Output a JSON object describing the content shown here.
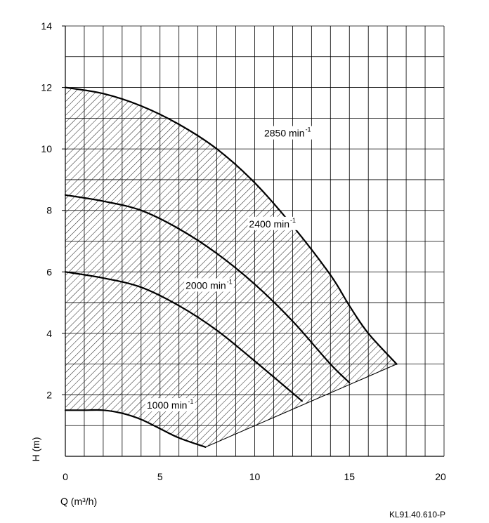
{
  "chart_data": {
    "type": "line",
    "title": "",
    "xlabel": "Q (m³/h)",
    "ylabel": "H (m)",
    "xlim": [
      0,
      20
    ],
    "ylim": [
      0,
      14
    ],
    "x_ticks": [
      0,
      5,
      10,
      15,
      20
    ],
    "y_ticks": [
      2,
      4,
      6,
      8,
      10,
      12,
      14
    ],
    "grid": true,
    "x_grid": [
      0,
      1,
      2,
      3,
      4,
      5,
      6,
      7,
      8,
      9,
      10,
      11,
      12,
      13,
      14,
      15,
      16,
      17,
      18,
      19,
      20
    ],
    "y_grid": [
      0,
      1,
      2,
      3,
      4,
      5,
      6,
      7,
      8,
      9,
      10,
      11,
      12,
      13,
      14
    ],
    "hatched_operating_area": true,
    "series": [
      {
        "name": "2850 min⁻¹",
        "label_base": "2850 min",
        "label_sup": "-1",
        "x": [
          0,
          2,
          4,
          6,
          8,
          10,
          12,
          14,
          15,
          16,
          17.5
        ],
        "y": [
          12.0,
          11.8,
          11.4,
          10.8,
          10.0,
          8.9,
          7.5,
          5.9,
          4.9,
          4.0,
          3.0
        ]
      },
      {
        "name": "2400 min⁻¹",
        "label_base": "2400 min",
        "label_sup": "-1",
        "x": [
          0,
          2,
          4,
          6,
          8,
          10,
          12,
          14,
          15
        ],
        "y": [
          8.5,
          8.3,
          8.0,
          7.4,
          6.6,
          5.6,
          4.4,
          3.0,
          2.4
        ]
      },
      {
        "name": "2000 min⁻¹",
        "label_base": "2000 min",
        "label_sup": "-1",
        "x": [
          0,
          2,
          4,
          6,
          8,
          10,
          12.5
        ],
        "y": [
          6.0,
          5.8,
          5.5,
          4.9,
          4.1,
          3.1,
          1.8
        ]
      },
      {
        "name": "1000 min⁻¹",
        "label_base": "1000 min",
        "label_sup": "-1",
        "x": [
          0,
          1,
          2,
          3,
          4,
          5,
          6,
          7.4
        ],
        "y": [
          1.5,
          1.5,
          1.5,
          1.4,
          1.2,
          0.9,
          0.6,
          0.3
        ]
      }
    ],
    "min_flow_boundary": {
      "x": [
        7.4,
        17.5
      ],
      "y": [
        0.3,
        3.0
      ]
    },
    "label_anchor_points": [
      {
        "series": 0,
        "x": 10.5,
        "y": 10.4
      },
      {
        "series": 1,
        "x": 9.7,
        "y": 7.45
      },
      {
        "series": 2,
        "x": 6.35,
        "y": 5.45
      },
      {
        "series": 3,
        "x": 4.3,
        "y": 1.55
      }
    ]
  },
  "reference_code": "KL91.40.610-P"
}
